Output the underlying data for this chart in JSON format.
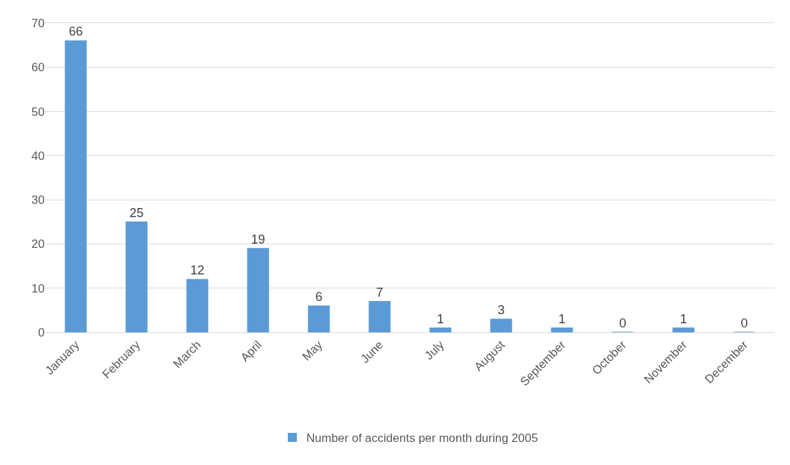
{
  "chart_data": {
    "type": "bar",
    "categories": [
      "January",
      "February",
      "March",
      "April",
      "May",
      "June",
      "July",
      "August",
      "September",
      "October",
      "November",
      "December"
    ],
    "series": [
      {
        "name": "Number of accidents per month during 2005",
        "color": "#5b9bd5",
        "values": [
          66,
          25,
          12,
          19,
          6,
          7,
          1,
          3,
          1,
          0,
          1,
          0
        ]
      }
    ],
    "ylim": [
      0,
      70
    ],
    "yticks": [
      0,
      10,
      20,
      30,
      40,
      50,
      60,
      70
    ],
    "grid": "y",
    "legend": "bottom",
    "data_labels": true
  }
}
